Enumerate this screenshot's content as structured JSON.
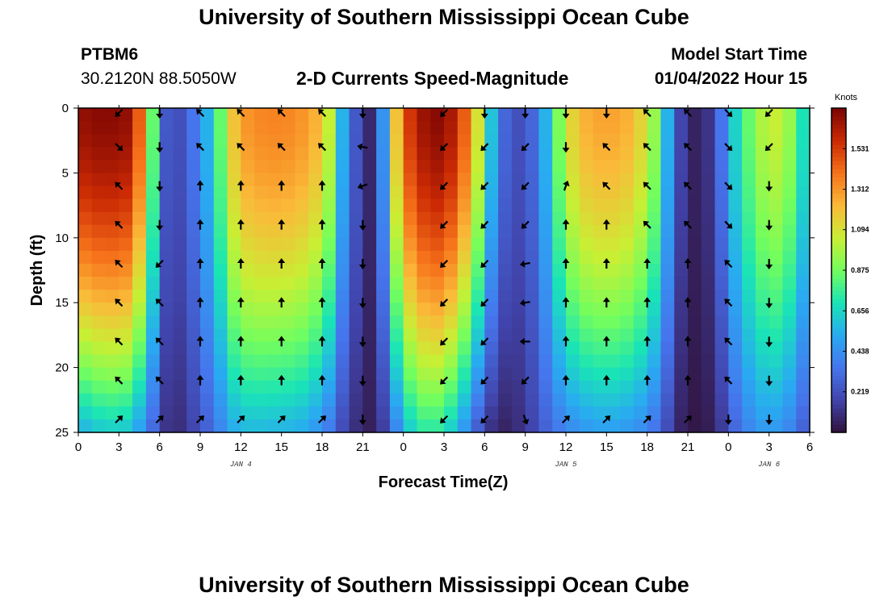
{
  "page": {
    "title_top": "University of Southern Mississippi Ocean Cube",
    "title_bottom": "University of Southern Mississippi Ocean Cube",
    "station_id": "PTBM6",
    "coordinates": "30.2120N  88.5050W",
    "chart_title": "2-D Currents Speed-Magnitude",
    "model_start_label": "Model Start Time",
    "model_start_value": "01/04/2022 Hour 15"
  },
  "chart_data": {
    "type": "heatmap",
    "title": "2-D Currents Speed-Magnitude",
    "xlabel": "Forecast Time(Z)",
    "ylabel": "Depth (ft)",
    "x_ticks": [
      "0",
      "3",
      "6",
      "9",
      "12",
      "15",
      "18",
      "21",
      "0",
      "3",
      "6",
      "9",
      "12",
      "15",
      "18",
      "21",
      "0",
      "3",
      "6"
    ],
    "x_range_hours": [
      0,
      54
    ],
    "date_labels": [
      {
        "label": "JAN 4",
        "hour": 12
      },
      {
        "label": "JAN 5",
        "hour": 36
      },
      {
        "label": "JAN 6",
        "hour": 51
      }
    ],
    "y_ticks": [
      "0",
      "5",
      "10",
      "15",
      "20",
      "25"
    ],
    "y_range_ft": [
      0,
      25
    ],
    "colorbar": {
      "title": "Knots",
      "range": [
        0,
        1.75
      ],
      "tick_values": [
        "1.531",
        "1.312",
        "1.094",
        "0.875",
        "0.656",
        "0.438",
        "0.219"
      ]
    },
    "speed_profile_knots": {
      "hours": [
        0,
        1,
        2,
        3,
        4,
        5,
        6,
        7,
        8,
        9,
        10,
        11,
        12,
        13,
        14,
        15,
        16,
        17,
        18,
        19,
        20,
        21,
        22,
        23,
        24,
        25,
        26,
        27,
        28,
        29,
        30,
        31,
        32,
        33,
        34,
        35,
        36,
        37,
        38,
        39,
        40,
        41,
        42,
        43,
        44,
        45,
        46,
        47,
        48,
        49,
        50,
        51,
        52,
        53,
        54
      ],
      "surface": [
        1.7,
        1.72,
        1.72,
        1.7,
        1.45,
        0.85,
        0.25,
        0.22,
        0.35,
        0.55,
        0.85,
        1.2,
        1.32,
        1.35,
        1.36,
        1.35,
        1.32,
        1.25,
        1.05,
        0.55,
        0.25,
        0.08,
        0.45,
        1.2,
        1.55,
        1.68,
        1.72,
        1.65,
        1.45,
        1.1,
        0.6,
        0.3,
        0.22,
        0.3,
        0.55,
        0.9,
        1.15,
        1.25,
        1.28,
        1.28,
        1.25,
        1.15,
        0.95,
        0.55,
        0.18,
        0.06,
        0.12,
        0.35,
        0.65,
        0.85,
        1.0,
        1.05,
        0.95,
        0.7,
        0.4
      ],
      "bottom": [
        0.55,
        0.6,
        0.62,
        0.6,
        0.48,
        0.3,
        0.12,
        0.1,
        0.18,
        0.28,
        0.4,
        0.52,
        0.56,
        0.56,
        0.55,
        0.54,
        0.52,
        0.46,
        0.36,
        0.2,
        0.1,
        0.05,
        0.15,
        0.4,
        0.62,
        0.72,
        0.72,
        0.62,
        0.45,
        0.25,
        0.1,
        0.06,
        0.1,
        0.18,
        0.28,
        0.36,
        0.42,
        0.46,
        0.48,
        0.48,
        0.46,
        0.42,
        0.34,
        0.2,
        0.06,
        0.02,
        0.04,
        0.14,
        0.3,
        0.4,
        0.46,
        0.46,
        0.4,
        0.28,
        0.15
      ]
    },
    "arrow_depths_ft": [
      0,
      3,
      6,
      9,
      12,
      15,
      18,
      21,
      24
    ],
    "arrow_hours": [
      3,
      6,
      9,
      12,
      15,
      18,
      21,
      27,
      30,
      33,
      36,
      39,
      42,
      45,
      48,
      51
    ],
    "arrow_directions": [
      [
        225,
        135,
        315,
        315,
        315,
        315,
        315,
        315,
        45
      ],
      [
        180,
        180,
        180,
        180,
        225,
        315,
        315,
        315,
        45
      ],
      [
        315,
        315,
        0,
        0,
        0,
        0,
        0,
        0,
        45
      ],
      [
        315,
        315,
        0,
        0,
        0,
        0,
        0,
        0,
        45
      ],
      [
        315,
        315,
        0,
        0,
        0,
        0,
        0,
        0,
        45
      ],
      [
        315,
        315,
        0,
        0,
        0,
        0,
        0,
        0,
        45
      ],
      [
        180,
        280,
        250,
        180,
        180,
        180,
        180,
        180,
        180
      ],
      [
        225,
        225,
        225,
        225,
        225,
        225,
        225,
        225,
        225
      ],
      [
        180,
        225,
        225,
        225,
        225,
        225,
        225,
        225,
        225
      ],
      [
        180,
        225,
        225,
        225,
        260,
        260,
        270,
        225,
        160
      ],
      [
        180,
        180,
        20,
        0,
        0,
        0,
        0,
        0,
        45
      ],
      [
        180,
        315,
        315,
        0,
        0,
        0,
        0,
        0,
        45
      ],
      [
        315,
        315,
        315,
        315,
        0,
        0,
        0,
        0,
        45
      ],
      [
        315,
        315,
        315,
        315,
        0,
        0,
        0,
        0,
        45
      ],
      [
        135,
        135,
        135,
        135,
        315,
        315,
        315,
        315,
        180
      ],
      [
        225,
        225,
        180,
        180,
        180,
        180,
        180,
        180,
        180
      ]
    ]
  }
}
